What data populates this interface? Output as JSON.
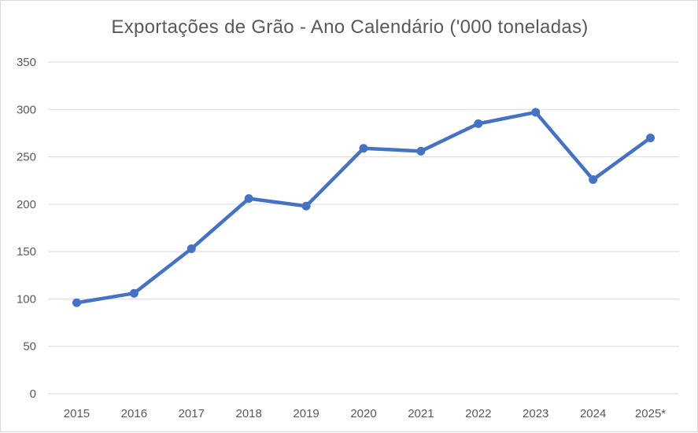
{
  "chart_data": {
    "type": "line",
    "title": "Exportações de Grão - Ano Calendário  ('000 toneladas)",
    "xlabel": "",
    "ylabel": "",
    "categories": [
      "2015",
      "2016",
      "2017",
      "2018",
      "2019",
      "2020",
      "2021",
      "2022",
      "2023",
      "2024",
      "2025*"
    ],
    "series": [
      {
        "values": [
          96,
          106,
          153,
          206,
          198,
          259,
          256,
          285,
          297,
          226,
          270
        ],
        "color": "#4472c4"
      }
    ],
    "ylim": [
      0,
      350
    ],
    "yticks": [
      "0",
      "50",
      "100",
      "150",
      "200",
      "250",
      "300",
      "350"
    ],
    "grid": true,
    "legend": "none",
    "colors": {
      "line": "#4472c4",
      "grid": "#d9d9d9",
      "text": "#595959"
    }
  }
}
